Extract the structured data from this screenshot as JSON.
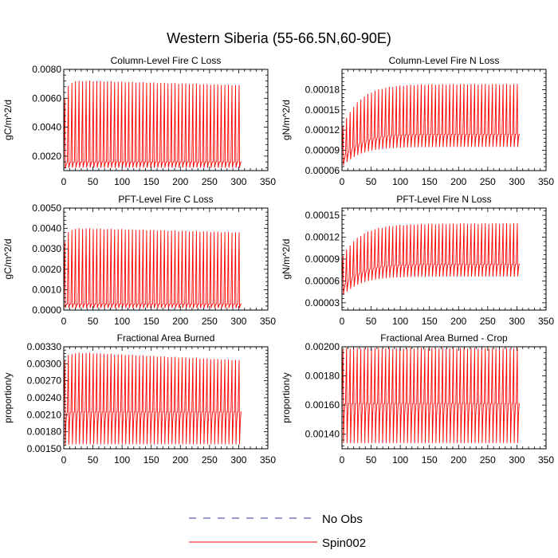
{
  "title": "Western Siberia (55-66.5N,60-90E)",
  "legend": {
    "placement": "bottom-center",
    "entries": [
      {
        "label": "No Obs",
        "color": "#3333aa",
        "style": "dashed"
      },
      {
        "label": "Spin002",
        "color": "#ff0000",
        "style": "solid"
      }
    ]
  },
  "chart_data": [
    {
      "type": "line",
      "title": "Column-Level Fire C Loss",
      "ylabel": "gC/m^2/d",
      "xlim": [
        0,
        350
      ],
      "ylim": [
        0.001,
        0.008
      ],
      "xticks": [
        0,
        50,
        100,
        150,
        200,
        250,
        300,
        350
      ],
      "yticks": [
        0.002,
        0.004,
        0.006,
        0.008
      ],
      "ytick_labels": [
        "0.0020",
        "0.0040",
        "0.0060",
        "0.0080"
      ],
      "series": [
        {
          "name": "Spin002",
          "color": "#ff0000",
          "cycles": 50,
          "x_end": 305,
          "peak_start": 0.005,
          "peak_plateau": 0.0072,
          "peak_end": 0.0069,
          "trough_start": 0.0011,
          "trough_plateau": 0.0012,
          "base_start": 0.0014,
          "base_plateau": 0.0016,
          "tau": 5
        }
      ]
    },
    {
      "type": "line",
      "title": "Column-Level Fire N Loss",
      "ylabel": "gN/m^2/d",
      "xlim": [
        0,
        350
      ],
      "ylim": [
        6e-05,
        0.00021
      ],
      "xticks": [
        0,
        50,
        100,
        150,
        200,
        250,
        300,
        350
      ],
      "yticks": [
        6e-05,
        9e-05,
        0.00012,
        0.00015,
        0.00018
      ],
      "ytick_labels": [
        "0.00006",
        "0.00009",
        "0.00012",
        "0.00015",
        "0.00018"
      ],
      "series": [
        {
          "name": "Spin002",
          "color": "#ff0000",
          "cycles": 50,
          "x_end": 305,
          "peak_start": 0.00012,
          "peak_plateau": 0.000188,
          "peak_end": 0.000188,
          "trough_start": 6.5e-05,
          "trough_plateau": 9.5e-05,
          "base_start": 7.5e-05,
          "base_plateau": 0.000114,
          "tau": 30
        }
      ]
    },
    {
      "type": "line",
      "title": "PFT-Level Fire C Loss",
      "ylabel": "gC/m^2/d",
      "xlim": [
        0,
        350
      ],
      "ylim": [
        0.0,
        0.005
      ],
      "xticks": [
        0,
        50,
        100,
        150,
        200,
        250,
        300,
        350
      ],
      "yticks": [
        0.0,
        0.001,
        0.002,
        0.003,
        0.004,
        0.005
      ],
      "ytick_labels": [
        "0.0000",
        "0.0010",
        "0.0020",
        "0.0030",
        "0.0040",
        "0.0050"
      ],
      "series": [
        {
          "name": "Spin002",
          "color": "#ff0000",
          "cycles": 50,
          "x_end": 305,
          "peak_start": 0.0028,
          "peak_plateau": 0.004,
          "peak_end": 0.0038,
          "trough_start": 0.0001,
          "trough_plateau": 0.0001,
          "base_start": 0.0003,
          "base_plateau": 0.0003,
          "tau": 5
        }
      ]
    },
    {
      "type": "line",
      "title": "PFT-Level Fire N Loss",
      "ylabel": "gN/m^2/d",
      "xlim": [
        0,
        350
      ],
      "ylim": [
        2e-05,
        0.00016
      ],
      "xticks": [
        0,
        50,
        100,
        150,
        200,
        250,
        300,
        350
      ],
      "yticks": [
        3e-05,
        6e-05,
        9e-05,
        0.00012,
        0.00015
      ],
      "ytick_labels": [
        "0.00003",
        "0.00006",
        "0.00009",
        "0.00012",
        "0.00015"
      ],
      "series": [
        {
          "name": "Spin002",
          "color": "#ff0000",
          "cycles": 50,
          "x_end": 305,
          "peak_start": 9e-05,
          "peak_plateau": 0.000138,
          "peak_end": 0.000139,
          "trough_start": 3.8e-05,
          "trough_plateau": 6.6e-05,
          "base_start": 5e-05,
          "base_plateau": 8.3e-05,
          "tau": 30
        }
      ]
    },
    {
      "type": "line",
      "title": "Fractional Area Burned",
      "ylabel": "proportion/y",
      "xlim": [
        0,
        350
      ],
      "ylim": [
        0.0015,
        0.0033
      ],
      "xticks": [
        0,
        50,
        100,
        150,
        200,
        250,
        300,
        350
      ],
      "yticks": [
        0.0015,
        0.0018,
        0.0021,
        0.0024,
        0.0027,
        0.003,
        0.0033
      ],
      "ytick_labels": [
        "0.00150",
        "0.00180",
        "0.00210",
        "0.00240",
        "0.00270",
        "0.00300",
        "0.00330"
      ],
      "series": [
        {
          "name": "Spin002",
          "color": "#ff0000",
          "cycles": 50,
          "x_end": 305,
          "peak_start": 0.00295,
          "peak_plateau": 0.00319,
          "peak_end": 0.00306,
          "trough_start": 0.00155,
          "trough_plateau": 0.00158,
          "base_start": 0.0021,
          "base_plateau": 0.00215,
          "tau": 5
        }
      ]
    },
    {
      "type": "line",
      "title": "Fractional Area Burned - Crop",
      "ylabel": "proportion/y",
      "xlim": [
        0,
        350
      ],
      "ylim": [
        0.0013,
        0.002
      ],
      "xticks": [
        0,
        50,
        100,
        150,
        200,
        250,
        300,
        350
      ],
      "yticks": [
        0.0014,
        0.0016,
        0.0018,
        0.002
      ],
      "ytick_labels": [
        "0.00140",
        "0.00160",
        "0.00180",
        "0.00200"
      ],
      "series": [
        {
          "name": "Spin002",
          "color": "#ff0000",
          "cycles": 50,
          "x_end": 305,
          "peak_start": 0.00199,
          "peak_plateau": 0.00199,
          "peak_end": 0.00199,
          "trough_start": 0.00134,
          "trough_plateau": 0.00134,
          "base_start": 0.00161,
          "base_plateau": 0.00161,
          "tau": 5
        }
      ]
    }
  ]
}
